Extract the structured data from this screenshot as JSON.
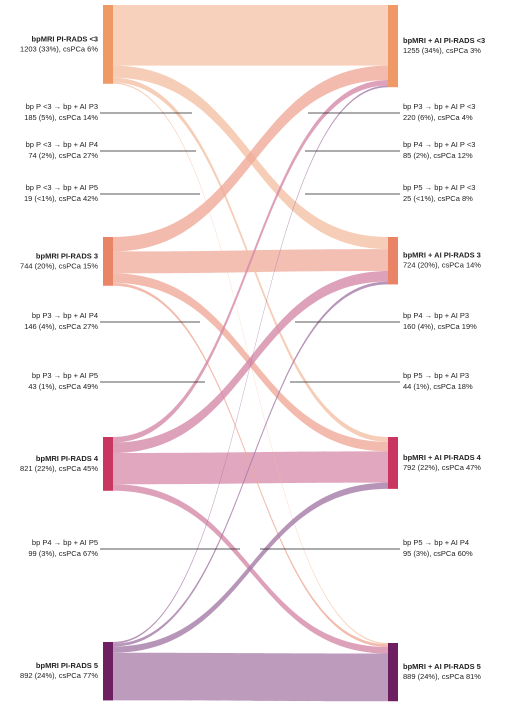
{
  "chart_data": {
    "type": "sankey",
    "nodes_left": [
      {
        "label": "bpMRI PI-RADS <3",
        "detail": "1203 (33%), csPCa 6%",
        "value": 1203,
        "color": "#ef9a66",
        "flow_color": "#f4c2a6"
      },
      {
        "label": "bpMRI PI-RADS 3",
        "detail": "744 (20%), csPCa 15%",
        "value": 744,
        "color": "#ea8466",
        "flow_color": "#efaa98"
      },
      {
        "label": "bpMRI PI-RADS 4",
        "detail": "821 (22%), csPCa 45%",
        "value": 821,
        "color": "#c9365f",
        "flow_color": "#d58aa8"
      },
      {
        "label": "bpMRI PI-RADS 5",
        "detail": "892 (24%), csPCa 77%",
        "value": 892,
        "color": "#6e1f62",
        "flow_color": "#a57aa6"
      }
    ],
    "nodes_right": [
      {
        "label": "bpMRI + AI PI-RADS <3",
        "detail": "1255 (34%), csPCa 3%",
        "value": 1255,
        "color": "#ef9a66"
      },
      {
        "label": "bpMRI + AI PI-RADS 3",
        "detail": "724 (20%), csPCa 14%",
        "value": 724,
        "color": "#ea8466"
      },
      {
        "label": "bpMRI + AI PI-RADS 4",
        "detail": "792 (22%), csPCa 47%",
        "value": 792,
        "color": "#c9365f"
      },
      {
        "label": "bpMRI + AI PI-RADS 5",
        "detail": "889 (24%), csPCa 81%",
        "value": 889,
        "color": "#6e1f62"
      }
    ],
    "flows": [
      {
        "source": 0,
        "target": 0,
        "value": 925
      },
      {
        "source": 0,
        "target": 1,
        "value": 185,
        "label": "bp P <3 → bp + AI P3",
        "detail": "185 (5%), csPCa 14%"
      },
      {
        "source": 0,
        "target": 2,
        "value": 74,
        "label": "bp P <3 → bp + AI P4",
        "detail": "74 (2%), csPCa 27%"
      },
      {
        "source": 0,
        "target": 3,
        "value": 19,
        "label": "bp P <3 → bp + AI P5",
        "detail": "19 (<1%), csPCa 42%"
      },
      {
        "source": 1,
        "target": 0,
        "value": 220,
        "label": "bp P3 → bp + AI P <3",
        "detail": "220 (6%), csPCa 4%"
      },
      {
        "source": 1,
        "target": 1,
        "value": 335
      },
      {
        "source": 1,
        "target": 2,
        "value": 146,
        "label": "bp P3 → bp + AI P4",
        "detail": "146 (4%), csPCa 27%"
      },
      {
        "source": 1,
        "target": 3,
        "value": 43,
        "label": "bp P3 → bp + AI P5",
        "detail": "43 (1%), csPCa 49%"
      },
      {
        "source": 2,
        "target": 0,
        "value": 85,
        "label": "bp P4 → bp + AI P <3",
        "detail": "85 (2%), csPCa 12%"
      },
      {
        "source": 2,
        "target": 1,
        "value": 160,
        "label": "bp P4 → bp + AI P3",
        "detail": "160 (4%), csPCa 19%"
      },
      {
        "source": 2,
        "target": 2,
        "value": 477
      },
      {
        "source": 2,
        "target": 3,
        "value": 99,
        "label": "bp P4 → bp + AI P5",
        "detail": "99 (3%), csPCa 67%"
      },
      {
        "source": 3,
        "target": 0,
        "value": 25,
        "label": "bp P5 → bp + AI P <3",
        "detail": "25 (<1%), csPCa 8%"
      },
      {
        "source": 3,
        "target": 1,
        "value": 44,
        "label": "bp P5 → bp + AI P3",
        "detail": "44 (1%), csPCa 18%"
      },
      {
        "source": 3,
        "target": 2,
        "value": 95,
        "label": "bp P5 → bp + AI P4",
        "detail": "95 (3%), csPCa 60%"
      },
      {
        "source": 3,
        "target": 3,
        "value": 728
      }
    ]
  }
}
